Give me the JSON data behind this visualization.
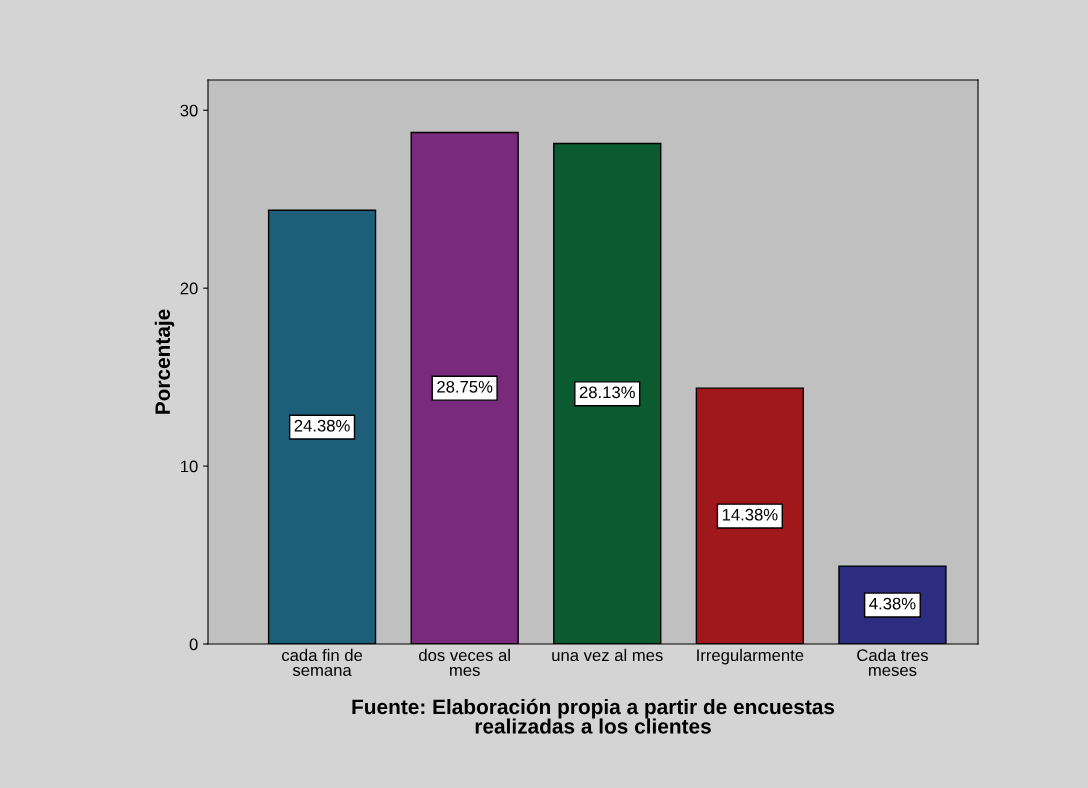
{
  "chart_data": {
    "type": "bar",
    "xlabel": "Fuente: Elaboración propia a partir de encuestas\nrealizadas a los clientes",
    "ylabel": "Porcentaje",
    "categories": [
      "cada fin de\nsemana",
      "dos veces al\nmes",
      "una vez al mes",
      "Irregularmente",
      "Cada tres\nmeses"
    ],
    "values": [
      24.38,
      28.75,
      28.13,
      14.38,
      4.38
    ],
    "colors": [
      "#1d5f78",
      "#7a2a7c",
      "#0b5a30",
      "#a0171c",
      "#2c2c80"
    ],
    "value_labels": [
      "24.38%",
      "28.75%",
      "28.13%",
      "14.38%",
      "4.38%"
    ],
    "ylim": [
      0,
      31.7
    ],
    "yticks": [
      0,
      10,
      20,
      30
    ],
    "grid": false,
    "legend": false
  }
}
